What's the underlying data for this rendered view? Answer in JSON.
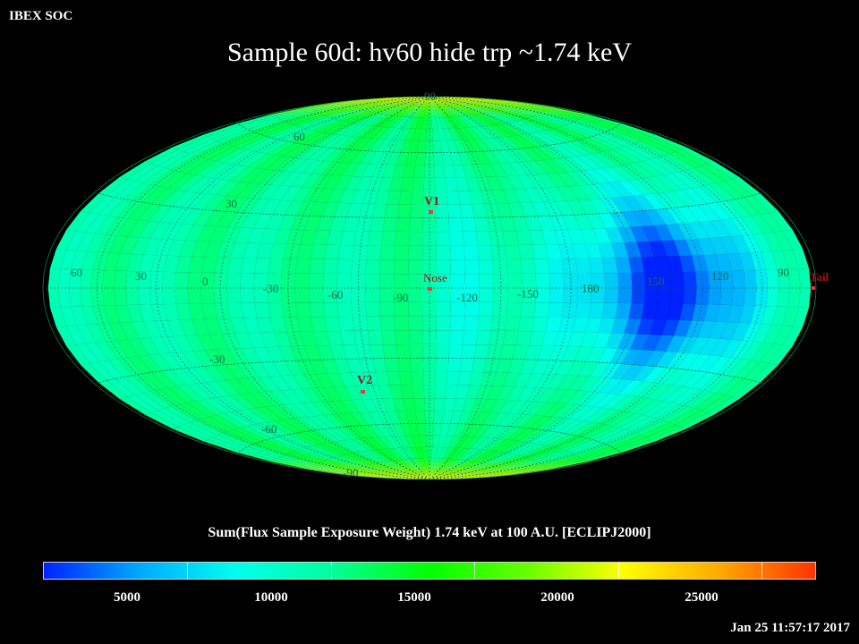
{
  "corner_label": "IBEX SOC",
  "title": "Sample 60d: hv60 hide trp ~1.74 keV",
  "colorbar": {
    "title": "Sum(Flux Sample Exposure Weight)  1.74 keV at 100 A.U. [ECLIPJ2000]",
    "ticks": [
      "5000",
      "10000",
      "15000",
      "20000",
      "25000"
    ],
    "tick_values": [
      5000,
      10000,
      15000,
      20000,
      25000
    ],
    "range": [
      2000,
      29500
    ],
    "colors": [
      "#0022ff",
      "#00aaff",
      "#00ffee",
      "#00ff99",
      "#00ff00",
      "#66ff00",
      "#ffff00",
      "#ffaa00",
      "#ff3300"
    ]
  },
  "timestamp": "Jan 25 11:57:17 2017",
  "map": {
    "projection": "hammer-aitoff",
    "center_longitude": -105,
    "lat_labels": [
      "90",
      "60",
      "30",
      "-30",
      "-60",
      "-90"
    ],
    "lon_labels": [
      "60",
      "30",
      "0",
      "-30",
      "-60",
      "-90",
      "-120",
      "-150",
      "180",
      "150",
      "120",
      "90"
    ],
    "markers": [
      {
        "name": "V1",
        "lon": -105,
        "lat": 35,
        "color": "#ff3333"
      },
      {
        "name": "Nose",
        "lon": -105,
        "lat": 5,
        "color": "#ff3333"
      },
      {
        "name": "V2",
        "lon": -70,
        "lat": -34,
        "color": "#ff3333"
      },
      {
        "name": "Tail",
        "lon": 75,
        "lat": 0,
        "color": "#ff3333"
      }
    ]
  }
}
